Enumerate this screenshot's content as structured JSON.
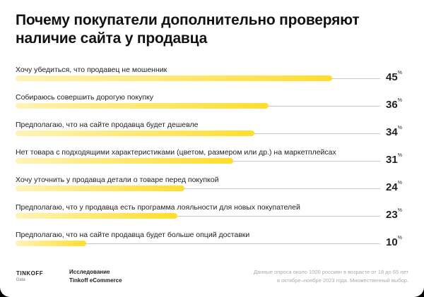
{
  "chart_data": {
    "type": "bar",
    "orientation": "horizontal",
    "title": "Почему покупатели дополнительно проверяют наличие сайта у продавца",
    "unit": "%",
    "categories": [
      "Хочу убедиться, что продавец не мошенник",
      "Собираюсь совершить дорогую покупку",
      "Предполагаю, что на сайте продавца будет дешевле",
      "Нет товара с подходящими характеристиками (цветом, размером или др.) на маркетплейсах",
      "Хочу уточнить у продавца детали о товаре перед покупкой",
      "Предполагаю, что у продавца есть программа лояльности для новых покупателей",
      "Предполагаю, что на сайте продавца будет больше опций доставки"
    ],
    "values": [
      45,
      36,
      34,
      31,
      24,
      23,
      10
    ],
    "bar_color": "#ffdd2d"
  },
  "footer": {
    "logo": "TINKOFF",
    "logo_sub": "Data",
    "study_line1": "Исследование",
    "study_line2": "Tinkoff eCommerce",
    "note_line1": "Данные опроса около 1000 россиян в возрасте от 18 до 65 лет",
    "note_line2": "в октябре–ноябре 2023 года. Множественный выбор."
  }
}
